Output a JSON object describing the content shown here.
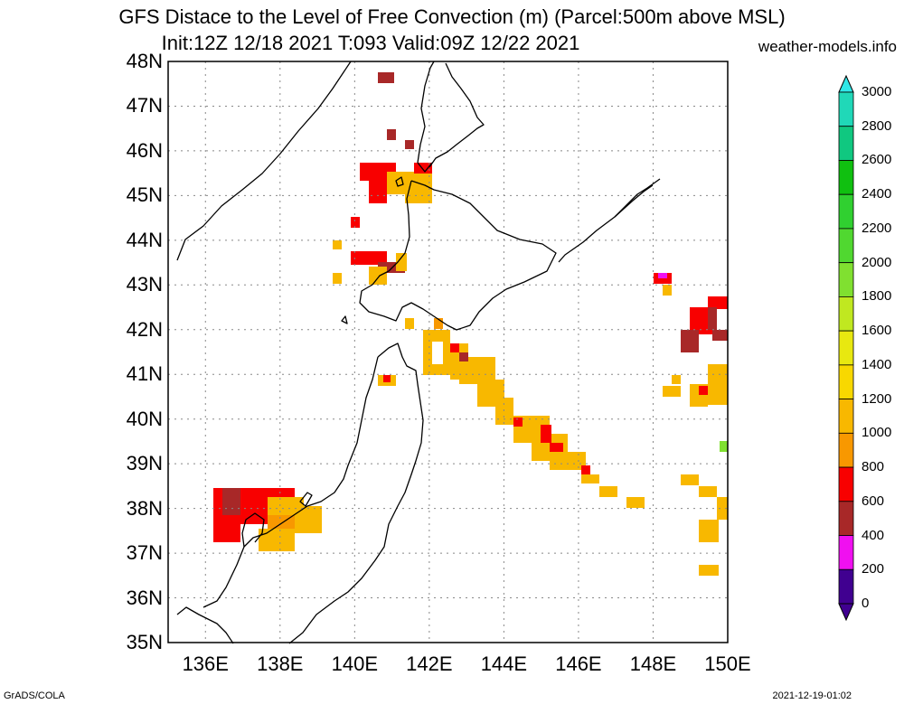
{
  "header": {
    "title_line1": "GFS Distace to the Level of Free Convection (m) (Parcel:500m above MSL)",
    "title_line2": "Init:12Z 12/18 2021 T:093 Valid:09Z 12/22 2021",
    "site": "weather-models.info"
  },
  "footer": {
    "left": "GrADS/COLA",
    "right": "2021-12-19-01:02"
  },
  "map": {
    "lat_labels": [
      "48N",
      "47N",
      "46N",
      "45N",
      "44N",
      "43N",
      "42N",
      "41N",
      "40N",
      "39N",
      "38N",
      "37N",
      "36N",
      "35N"
    ],
    "lon_labels": [
      "136E",
      "138E",
      "140E",
      "142E",
      "144E",
      "146E",
      "148E",
      "150E"
    ],
    "lat_range": [
      35,
      48
    ],
    "lon_range": [
      135,
      150
    ],
    "grid": true
  },
  "colorbar": {
    "labels": [
      "3000",
      "2800",
      "2600",
      "2400",
      "2200",
      "2000",
      "1800",
      "1600",
      "1400",
      "1200",
      "1000",
      "800",
      "600",
      "400",
      "200",
      "0"
    ],
    "colors": [
      "#30e8e8",
      "#20d8b8",
      "#10c880",
      "#10c010",
      "#30d030",
      "#50d830",
      "#80e030",
      "#c0e820",
      "#e8e810",
      "#f8d800",
      "#f8b800",
      "#f89800",
      "#f80000",
      "#a82828",
      "#f010f0",
      "#400090"
    ]
  }
}
